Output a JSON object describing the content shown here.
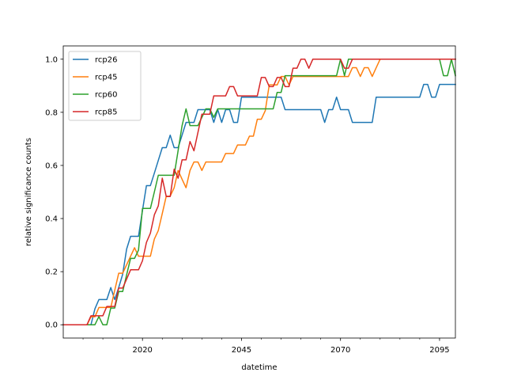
{
  "chart_data": {
    "type": "line",
    "xlabel": "datetime",
    "ylabel": "relative significance counts",
    "xlim": [
      2000,
      2099
    ],
    "ylim": [
      -0.05,
      1.05
    ],
    "xticks": [
      2020,
      2045,
      2070,
      2095
    ],
    "xtick_labels": [
      "2020",
      "2045",
      "2070",
      "2095"
    ],
    "yticks": [
      0.0,
      0.2,
      0.4,
      0.6,
      0.8,
      1.0
    ],
    "ytick_labels": [
      "0.0",
      "0.2",
      "0.4",
      "0.6",
      "0.8",
      "1.0"
    ],
    "legend_position": "top-left",
    "grid": false,
    "series": [
      {
        "name": "rcp26",
        "color": "#1f77b4",
        "points": [
          [
            2000,
            0.0
          ],
          [
            2005,
            0.0
          ],
          [
            2007,
            0.0
          ],
          [
            2008,
            0.06
          ],
          [
            2009,
            0.095
          ],
          [
            2010,
            0.095
          ],
          [
            2011,
            0.095
          ],
          [
            2012,
            0.14
          ],
          [
            2013,
            0.095
          ],
          [
            2014,
            0.14
          ],
          [
            2015,
            0.19
          ],
          [
            2016,
            0.285
          ],
          [
            2017,
            0.333
          ],
          [
            2018,
            0.333
          ],
          [
            2019,
            0.333
          ],
          [
            2020,
            0.43
          ],
          [
            2021,
            0.524
          ],
          [
            2022,
            0.524
          ],
          [
            2023,
            0.571
          ],
          [
            2024,
            0.619
          ],
          [
            2025,
            0.667
          ],
          [
            2026,
            0.667
          ],
          [
            2027,
            0.714
          ],
          [
            2028,
            0.667
          ],
          [
            2029,
            0.667
          ],
          [
            2030,
            0.714
          ],
          [
            2031,
            0.762
          ],
          [
            2032,
            0.762
          ],
          [
            2033,
            0.762
          ],
          [
            2034,
            0.81
          ],
          [
            2035,
            0.81
          ],
          [
            2036,
            0.81
          ],
          [
            2037,
            0.81
          ],
          [
            2038,
            0.762
          ],
          [
            2039,
            0.81
          ],
          [
            2040,
            0.762
          ],
          [
            2041,
            0.81
          ],
          [
            2042,
            0.81
          ],
          [
            2043,
            0.762
          ],
          [
            2044,
            0.762
          ],
          [
            2045,
            0.857
          ],
          [
            2050,
            0.857
          ],
          [
            2055,
            0.857
          ],
          [
            2056,
            0.81
          ],
          [
            2057,
            0.81
          ],
          [
            2065,
            0.81
          ],
          [
            2066,
            0.762
          ],
          [
            2067,
            0.81
          ],
          [
            2068,
            0.81
          ],
          [
            2069,
            0.857
          ],
          [
            2070,
            0.81
          ],
          [
            2072,
            0.81
          ],
          [
            2073,
            0.762
          ],
          [
            2078,
            0.762
          ],
          [
            2079,
            0.857
          ],
          [
            2090,
            0.857
          ],
          [
            2091,
            0.905
          ],
          [
            2092,
            0.905
          ],
          [
            2093,
            0.857
          ],
          [
            2094,
            0.857
          ],
          [
            2095,
            0.905
          ],
          [
            2099,
            0.905
          ]
        ]
      },
      {
        "name": "rcp45",
        "color": "#ff7f0e",
        "points": [
          [
            2000,
            0.0
          ],
          [
            2006,
            0.0
          ],
          [
            2007,
            0.03
          ],
          [
            2008,
            0.03
          ],
          [
            2009,
            0.065
          ],
          [
            2010,
            0.065
          ],
          [
            2011,
            0.065
          ],
          [
            2012,
            0.065
          ],
          [
            2013,
            0.13
          ],
          [
            2014,
            0.194
          ],
          [
            2015,
            0.194
          ],
          [
            2016,
            0.226
          ],
          [
            2017,
            0.258
          ],
          [
            2018,
            0.29
          ],
          [
            2019,
            0.258
          ],
          [
            2020,
            0.258
          ],
          [
            2021,
            0.258
          ],
          [
            2022,
            0.258
          ],
          [
            2023,
            0.323
          ],
          [
            2024,
            0.355
          ],
          [
            2025,
            0.419
          ],
          [
            2026,
            0.484
          ],
          [
            2027,
            0.484
          ],
          [
            2028,
            0.516
          ],
          [
            2029,
            0.581
          ],
          [
            2030,
            0.548
          ],
          [
            2031,
            0.516
          ],
          [
            2032,
            0.581
          ],
          [
            2033,
            0.613
          ],
          [
            2034,
            0.613
          ],
          [
            2035,
            0.581
          ],
          [
            2036,
            0.613
          ],
          [
            2040,
            0.613
          ],
          [
            2041,
            0.645
          ],
          [
            2043,
            0.645
          ],
          [
            2044,
            0.677
          ],
          [
            2046,
            0.677
          ],
          [
            2047,
            0.71
          ],
          [
            2048,
            0.71
          ],
          [
            2049,
            0.774
          ],
          [
            2050,
            0.774
          ],
          [
            2051,
            0.806
          ],
          [
            2052,
            0.903
          ],
          [
            2053,
            0.903
          ],
          [
            2054,
            0.903
          ],
          [
            2055,
            0.935
          ],
          [
            2056,
            0.935
          ],
          [
            2057,
            0.903
          ],
          [
            2058,
            0.935
          ],
          [
            2072,
            0.935
          ],
          [
            2073,
            0.968
          ],
          [
            2074,
            0.968
          ],
          [
            2075,
            0.935
          ],
          [
            2076,
            0.968
          ],
          [
            2077,
            0.968
          ],
          [
            2078,
            0.935
          ],
          [
            2079,
            0.968
          ],
          [
            2080,
            1.0
          ],
          [
            2099,
            1.0
          ]
        ]
      },
      {
        "name": "rcp60",
        "color": "#2ca02c",
        "points": [
          [
            2000,
            0.0
          ],
          [
            2008,
            0.0
          ],
          [
            2009,
            0.031
          ],
          [
            2010,
            0.0
          ],
          [
            2011,
            0.0
          ],
          [
            2012,
            0.063
          ],
          [
            2013,
            0.063
          ],
          [
            2014,
            0.125
          ],
          [
            2015,
            0.125
          ],
          [
            2016,
            0.188
          ],
          [
            2017,
            0.25
          ],
          [
            2018,
            0.25
          ],
          [
            2019,
            0.281
          ],
          [
            2020,
            0.438
          ],
          [
            2021,
            0.438
          ],
          [
            2022,
            0.438
          ],
          [
            2023,
            0.5
          ],
          [
            2024,
            0.563
          ],
          [
            2025,
            0.563
          ],
          [
            2028,
            0.563
          ],
          [
            2029,
            0.656
          ],
          [
            2030,
            0.75
          ],
          [
            2031,
            0.813
          ],
          [
            2032,
            0.75
          ],
          [
            2033,
            0.75
          ],
          [
            2034,
            0.75
          ],
          [
            2035,
            0.781
          ],
          [
            2036,
            0.813
          ],
          [
            2037,
            0.813
          ],
          [
            2038,
            0.781
          ],
          [
            2039,
            0.813
          ],
          [
            2053,
            0.813
          ],
          [
            2054,
            0.875
          ],
          [
            2055,
            0.875
          ],
          [
            2056,
            0.938
          ],
          [
            2057,
            0.938
          ],
          [
            2069,
            0.938
          ],
          [
            2070,
            1.0
          ],
          [
            2071,
            0.938
          ],
          [
            2072,
            1.0
          ],
          [
            2095,
            1.0
          ],
          [
            2096,
            0.938
          ],
          [
            2097,
            0.938
          ],
          [
            2098,
            1.0
          ],
          [
            2099,
            0.938
          ]
        ]
      },
      {
        "name": "rcp85",
        "color": "#d62728",
        "points": [
          [
            2000,
            0.0
          ],
          [
            2006,
            0.0
          ],
          [
            2007,
            0.034
          ],
          [
            2008,
            0.034
          ],
          [
            2009,
            0.034
          ],
          [
            2010,
            0.034
          ],
          [
            2011,
            0.069
          ],
          [
            2012,
            0.069
          ],
          [
            2013,
            0.069
          ],
          [
            2014,
            0.138
          ],
          [
            2015,
            0.138
          ],
          [
            2016,
            0.172
          ],
          [
            2017,
            0.207
          ],
          [
            2018,
            0.207
          ],
          [
            2019,
            0.207
          ],
          [
            2020,
            0.241
          ],
          [
            2021,
            0.31
          ],
          [
            2022,
            0.345
          ],
          [
            2023,
            0.414
          ],
          [
            2024,
            0.448
          ],
          [
            2025,
            0.552
          ],
          [
            2026,
            0.483
          ],
          [
            2027,
            0.483
          ],
          [
            2028,
            0.586
          ],
          [
            2029,
            0.552
          ],
          [
            2030,
            0.621
          ],
          [
            2031,
            0.621
          ],
          [
            2032,
            0.69
          ],
          [
            2033,
            0.655
          ],
          [
            2034,
            0.724
          ],
          [
            2035,
            0.793
          ],
          [
            2036,
            0.793
          ],
          [
            2037,
            0.793
          ],
          [
            2038,
            0.862
          ],
          [
            2041,
            0.862
          ],
          [
            2042,
            0.897
          ],
          [
            2043,
            0.897
          ],
          [
            2044,
            0.862
          ],
          [
            2049,
            0.862
          ],
          [
            2050,
            0.931
          ],
          [
            2051,
            0.931
          ],
          [
            2052,
            0.897
          ],
          [
            2053,
            0.897
          ],
          [
            2054,
            0.931
          ],
          [
            2055,
            0.931
          ],
          [
            2056,
            0.897
          ],
          [
            2057,
            0.897
          ],
          [
            2058,
            0.966
          ],
          [
            2059,
            0.966
          ],
          [
            2060,
            1.0
          ],
          [
            2061,
            1.0
          ],
          [
            2062,
            0.966
          ],
          [
            2063,
            1.0
          ],
          [
            2070,
            1.0
          ],
          [
            2071,
            0.966
          ],
          [
            2072,
            0.966
          ],
          [
            2073,
            1.0
          ],
          [
            2099,
            1.0
          ]
        ]
      }
    ]
  }
}
